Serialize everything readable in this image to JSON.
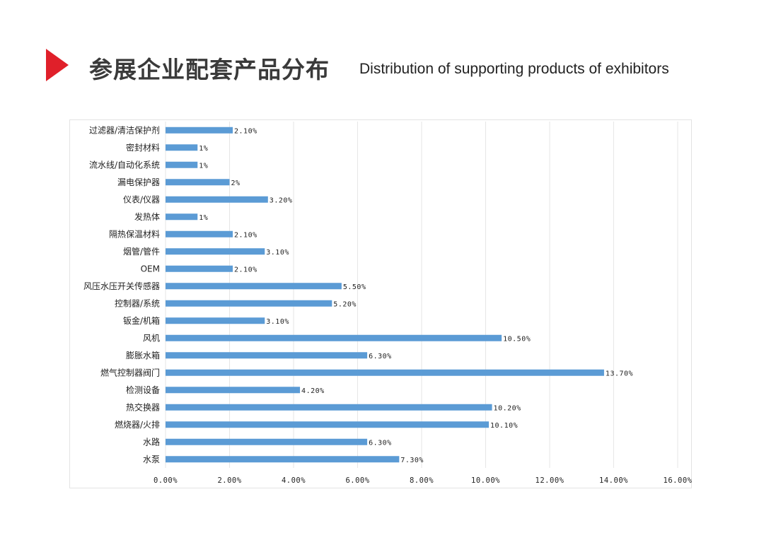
{
  "header": {
    "title_cn": "参展企业配套产品分布",
    "title_en": "Distribution of supporting products of exhibitors"
  },
  "colors": {
    "accent": "#e0202a",
    "bar": "#5b9bd5",
    "grid": "#e6e6e6"
  },
  "chart_data": {
    "type": "bar",
    "orientation": "horizontal",
    "title": "",
    "xlabel": "",
    "ylabel": "",
    "xlim": [
      0,
      16
    ],
    "x_ticks": [
      "0.00%",
      "2.00%",
      "4.00%",
      "6.00%",
      "8.00%",
      "10.00%",
      "12.00%",
      "14.00%",
      "16.00%"
    ],
    "grid": true,
    "legend": "none",
    "categories": [
      "过滤器/清洁保护剂",
      "密封材料",
      "流水线/自动化系统",
      "漏电保护器",
      "仪表/仪器",
      "发热体",
      "隔热保温材料",
      "烟管/管件",
      "OEM",
      "风压水压开关传感器",
      "控制器/系统",
      "钣金/机箱",
      "风机",
      "膨胀水箱",
      "燃气控制器阀门",
      "检测设备",
      "热交换器",
      "燃烧器/火排",
      "水路",
      "水泵"
    ],
    "values": [
      2.1,
      1,
      1,
      2,
      3.2,
      1,
      2.1,
      3.1,
      2.1,
      5.5,
      5.2,
      3.1,
      10.5,
      6.3,
      13.7,
      4.2,
      10.2,
      10.1,
      6.3,
      7.3
    ],
    "data_labels": [
      "2.10%",
      "1%",
      "1%",
      "2%",
      "3.20%",
      "1%",
      "2.10%",
      "3.10%",
      "2.10%",
      "5.50%",
      "5.20%",
      "3.10%",
      "10.50%",
      "6.30%",
      "13.70%",
      "4.20%",
      "10.20%",
      "10.10%",
      "6.30%",
      "7.30%"
    ]
  }
}
